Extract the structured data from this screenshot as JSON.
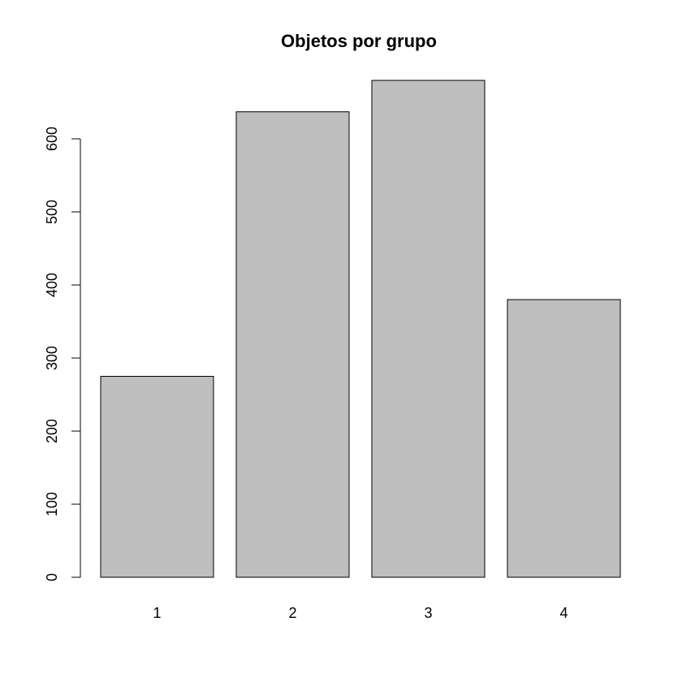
{
  "chart_data": {
    "type": "bar",
    "title": "Objetos por grupo",
    "xlabel": "",
    "ylabel": "",
    "categories": [
      "1",
      "2",
      "3",
      "4"
    ],
    "values": [
      275,
      637,
      680,
      380
    ],
    "ylim": [
      0,
      680
    ],
    "yticks": [
      0,
      100,
      200,
      300,
      400,
      500,
      600
    ],
    "grid": false,
    "legend": "none",
    "bar_color": "#bebebe"
  }
}
